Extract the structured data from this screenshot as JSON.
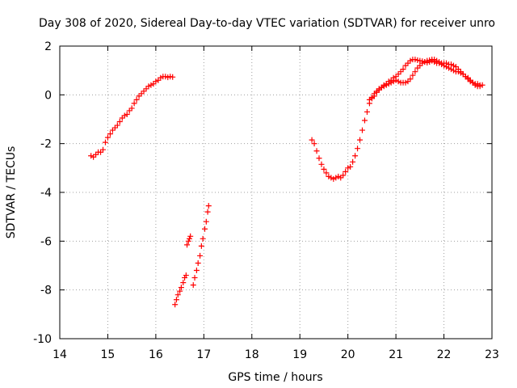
{
  "chart_data": {
    "type": "scatter",
    "title": "Day 308 of 2020, Sidereal Day-to-day VTEC variation (SDTVAR) for receiver unro",
    "xlabel": "GPS time / hours",
    "ylabel": "SDTVAR / TECUs",
    "xlim": [
      14,
      23
    ],
    "ylim": [
      -10,
      2
    ],
    "xticks": [
      "14",
      "15",
      "16",
      "17",
      "18",
      "19",
      "20",
      "21",
      "22",
      "23"
    ],
    "yticks": [
      "-10",
      "-8",
      "-6",
      "-4",
      "-2",
      "0",
      "2"
    ],
    "grid": true,
    "marker": "plus",
    "color": "#ff0000",
    "series": [
      {
        "name": "segment-1",
        "x": [
          14.65,
          14.7,
          14.75,
          14.8,
          14.85,
          14.9,
          14.95,
          15.0,
          15.05,
          15.1,
          15.15,
          15.2,
          15.25,
          15.3,
          15.35,
          15.4,
          15.45,
          15.5,
          15.55,
          15.6,
          15.65,
          15.7,
          15.75,
          15.8,
          15.85,
          15.9,
          15.95,
          16.0,
          16.05,
          16.1,
          16.15,
          16.2,
          16.25,
          16.3,
          16.35
        ],
        "y": [
          -2.5,
          -2.55,
          -2.45,
          -2.35,
          -2.35,
          -2.25,
          -1.95,
          -1.75,
          -1.6,
          -1.45,
          -1.35,
          -1.25,
          -1.1,
          -0.95,
          -0.85,
          -0.8,
          -0.65,
          -0.55,
          -0.35,
          -0.2,
          -0.05,
          0.05,
          0.15,
          0.25,
          0.35,
          0.4,
          0.45,
          0.55,
          0.6,
          0.7,
          0.75,
          0.75,
          0.72,
          0.75,
          0.73
        ]
      },
      {
        "name": "segment-2",
        "x": [
          16.4,
          16.43,
          16.46,
          16.5,
          16.53,
          16.57,
          16.6,
          16.63
        ],
        "y": [
          -8.6,
          -8.4,
          -8.2,
          -8.05,
          -7.9,
          -7.7,
          -7.5,
          -7.4
        ]
      },
      {
        "name": "segment-3",
        "x": [
          16.65,
          16.68,
          16.7,
          16.72
        ],
        "y": [
          -6.15,
          -6.0,
          -5.9,
          -5.8
        ]
      },
      {
        "name": "segment-4",
        "x": [
          16.78,
          16.81,
          16.85,
          16.88,
          16.92,
          16.95,
          16.98,
          17.02,
          17.05,
          17.08,
          17.1
        ],
        "y": [
          -7.8,
          -7.5,
          -7.2,
          -6.9,
          -6.6,
          -6.2,
          -5.9,
          -5.5,
          -5.2,
          -4.8,
          -4.55
        ]
      },
      {
        "name": "segment-5",
        "x": [
          19.25,
          19.3,
          19.35,
          19.4,
          19.45,
          19.5,
          19.55,
          19.6,
          19.65,
          19.7,
          19.75,
          19.8,
          19.85,
          19.9,
          19.95,
          20.0,
          20.05,
          20.1,
          20.15,
          20.2,
          20.25,
          20.3,
          20.35,
          20.4,
          20.45,
          20.5,
          20.55,
          20.6,
          20.65,
          20.7,
          20.75,
          20.8,
          20.85,
          20.9,
          20.95,
          21.0,
          21.05,
          21.1,
          21.15,
          21.2,
          21.25,
          21.3,
          21.35,
          21.4,
          21.45,
          21.5,
          21.55,
          21.6,
          21.65,
          21.7,
          21.75,
          21.8,
          21.85,
          21.9,
          21.95,
          22.0,
          22.05,
          22.1,
          22.15,
          22.2,
          22.25,
          22.3,
          22.35,
          22.4,
          22.45,
          22.5,
          22.55,
          22.6,
          22.65,
          22.7,
          22.75
        ],
        "y": [
          -1.85,
          -2.0,
          -2.3,
          -2.6,
          -2.85,
          -3.05,
          -3.2,
          -3.35,
          -3.4,
          -3.45,
          -3.4,
          -3.35,
          -3.4,
          -3.3,
          -3.15,
          -3.0,
          -2.95,
          -2.75,
          -2.5,
          -2.2,
          -1.85,
          -1.45,
          -1.05,
          -0.7,
          -0.35,
          -0.1,
          0.05,
          0.15,
          0.2,
          0.3,
          0.4,
          0.45,
          0.55,
          0.6,
          0.7,
          0.75,
          0.85,
          0.95,
          1.05,
          1.2,
          1.3,
          1.4,
          1.45,
          1.45,
          1.42,
          1.4,
          1.38,
          1.35,
          1.32,
          1.35,
          1.4,
          1.35,
          1.3,
          1.3,
          1.25,
          1.2,
          1.15,
          1.1,
          1.05,
          1.0,
          0.95,
          0.95,
          0.9,
          0.85,
          0.75,
          0.65,
          0.55,
          0.5,
          0.45,
          0.45,
          0.4
        ]
      },
      {
        "name": "segment-6",
        "x": [
          20.45,
          20.5,
          20.55,
          20.6,
          20.65,
          20.7,
          20.75,
          20.8,
          20.85,
          20.9,
          20.95,
          21.0,
          21.05,
          21.1,
          21.15,
          21.2,
          21.25,
          21.3,
          21.35,
          21.4,
          21.45,
          21.5,
          21.55,
          21.6,
          21.65,
          21.7,
          21.75,
          21.8,
          21.85,
          21.9,
          21.95,
          22.0,
          22.05,
          22.1,
          22.15,
          22.2,
          22.25,
          22.3,
          22.35,
          22.4,
          22.45,
          22.5,
          22.55,
          22.6,
          22.65,
          22.7,
          22.75,
          22.8
        ],
        "y": [
          -0.2,
          -0.15,
          -0.05,
          0.1,
          0.25,
          0.3,
          0.35,
          0.4,
          0.45,
          0.5,
          0.55,
          0.6,
          0.55,
          0.5,
          0.5,
          0.5,
          0.55,
          0.65,
          0.8,
          0.95,
          1.1,
          1.2,
          1.3,
          1.35,
          1.4,
          1.42,
          1.45,
          1.45,
          1.4,
          1.35,
          1.3,
          1.3,
          1.3,
          1.25,
          1.25,
          1.2,
          1.15,
          1.05,
          0.95,
          0.85,
          0.75,
          0.7,
          0.6,
          0.5,
          0.4,
          0.35,
          0.35,
          0.4
        ]
      }
    ]
  }
}
